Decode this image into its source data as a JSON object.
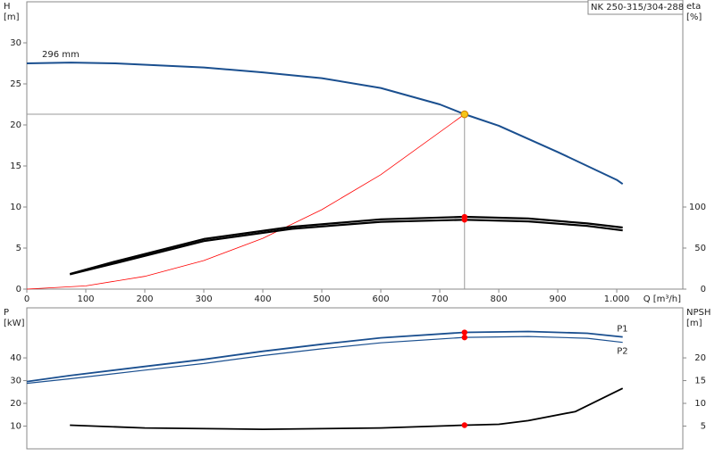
{
  "chart_data": [
    {
      "type": "line",
      "title": "NK 250-315/304-288",
      "xlabel": "Q [m³/h]",
      "ylabel": [
        "H",
        "[m]"
      ],
      "y2label": [
        "eta",
        "[%]"
      ],
      "xlim": [
        0,
        1112
      ],
      "xticks": [
        0,
        100,
        200,
        300,
        400,
        500,
        600,
        700,
        800,
        900,
        {
          "value": 1000,
          "label": "1.000"
        }
      ],
      "ylim": [
        0,
        35
      ],
      "yticks": [
        0,
        5,
        10,
        15,
        20,
        25,
        30
      ],
      "y2lim": [
        0,
        350
      ],
      "y2ticks": [
        0,
        50,
        100
      ],
      "duty_point": {
        "x": 742,
        "y": 21.3,
        "color": "#f5c518"
      },
      "series": [
        {
          "name": "296 mm",
          "label_pos": "start",
          "color": "#1a4f8f",
          "width": 2,
          "x": [
            0,
            75,
            150,
            300,
            400,
            500,
            600,
            700,
            742,
            800,
            900,
            1000,
            1010
          ],
          "values": [
            27.5,
            27.6,
            27.5,
            27.0,
            26.4,
            25.7,
            24.5,
            22.5,
            21.3,
            19.9,
            16.7,
            13.3,
            12.8
          ]
        },
        {
          "color": "#ff0000",
          "width": 0.8,
          "x": [
            0,
            100,
            200,
            300,
            400,
            500,
            600,
            742
          ],
          "values": [
            0,
            0.39,
            1.55,
            3.48,
            6.19,
            9.67,
            13.93,
            21.3
          ]
        },
        {
          "color": "#000000",
          "width": 2.2,
          "axis": "y2",
          "x": [
            73,
            150,
            300,
            450,
            600,
            742,
            850,
            950,
            1010
          ],
          "values": [
            18.5,
            33.7,
            61,
            76,
            85,
            88,
            86,
            80,
            75
          ]
        },
        {
          "color": "#000000",
          "width": 2.2,
          "axis": "y2",
          "x": [
            73,
            150,
            300,
            450,
            600,
            742,
            850,
            950,
            1010
          ],
          "values": [
            18,
            31.5,
            58.5,
            73.5,
            82,
            84.5,
            82.5,
            77,
            71.5
          ]
        },
        {
          "color": "#ff0000",
          "style": "points",
          "axis": "y2",
          "x": [
            742,
            742
          ],
          "values": [
            88,
            84.5
          ]
        }
      ]
    },
    {
      "type": "line",
      "ylabel": [
        "P",
        "[kW]"
      ],
      "y2label": [
        "NPSH",
        "[m]"
      ],
      "xlim": [
        0,
        1112
      ],
      "ylim": [
        0,
        62
      ],
      "yticks": [
        10,
        20,
        30,
        40
      ],
      "y2lim": [
        0,
        31
      ],
      "y2ticks": [
        5,
        10,
        15,
        20
      ],
      "series": [
        {
          "name": "P1",
          "label_pos": "end-above",
          "color": "#1a4f8f",
          "width": 1.8,
          "x": [
            0,
            73,
            200,
            300,
            400,
            500,
            600,
            742,
            850,
            950,
            1010
          ],
          "values": [
            29.6,
            32.2,
            36.2,
            39.3,
            42.9,
            46,
            48.8,
            51.2,
            51.6,
            50.8,
            49.2
          ]
        },
        {
          "name": "P2",
          "label_pos": "end-below",
          "color": "#1a4f8f",
          "width": 1.2,
          "x": [
            0,
            73,
            200,
            300,
            400,
            500,
            600,
            742,
            850,
            950,
            1010
          ],
          "values": [
            28.8,
            30.8,
            34.6,
            37.5,
            41,
            44,
            46.6,
            49,
            49.4,
            48.6,
            46.8
          ]
        },
        {
          "color": "#000000",
          "width": 1.8,
          "axis": "y2",
          "x": [
            73,
            200,
            400,
            600,
            742,
            800,
            850,
            930,
            1010
          ],
          "values": [
            5.2,
            4.6,
            4.3,
            4.6,
            5.2,
            5.4,
            6.2,
            8.2,
            13.3
          ]
        },
        {
          "color": "#ff0000",
          "style": "points",
          "x": [
            742,
            742
          ],
          "values": [
            51.2,
            49
          ]
        },
        {
          "color": "#ff0000",
          "style": "points",
          "axis": "y2",
          "x": [
            742
          ],
          "values": [
            5.2
          ]
        }
      ]
    }
  ]
}
